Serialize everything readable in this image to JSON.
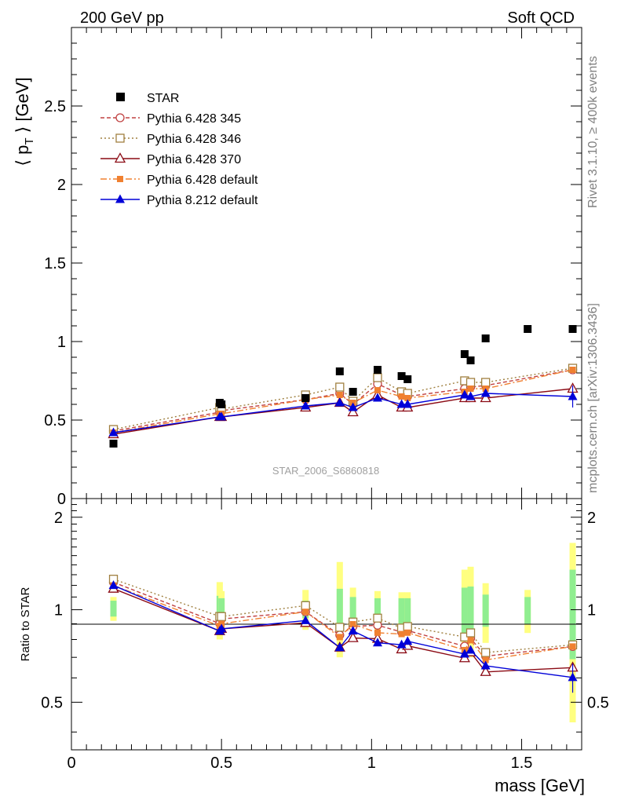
{
  "header": {
    "left_title": "200 GeV pp",
    "right_title": "Soft QCD"
  },
  "side_labels": {
    "rivet": "Rivet 3.1.10, ≥ 400k events",
    "mcplots": "mcplots.cern.ch [arXiv:1306.3436]"
  },
  "watermark": "STAR_2006_S6860818",
  "chart_data": {
    "type": "scatter",
    "title": "",
    "xlabel": "mass [GeV]",
    "ylabel": "⟨ p_T ⟩ [GeV]",
    "ratio_ylabel": "Ratio to STAR",
    "xlim": [
      0,
      1.7
    ],
    "ylim": [
      0,
      3.0
    ],
    "ratio_ylim": [
      0.35,
      2.3
    ],
    "x_ticks": [
      "0",
      "0.5",
      "1",
      "1.5"
    ],
    "x_tick_values": [
      0,
      0.5,
      1,
      1.5
    ],
    "y_ticks": [
      "0",
      "0.5",
      "1",
      "1.5",
      "2",
      "2.5"
    ],
    "y_tick_values": [
      0,
      0.5,
      1,
      1.5,
      2,
      2.5
    ],
    "ratio_ticks": [
      "0.5",
      "1",
      "2"
    ],
    "ratio_tick_values": [
      0.5,
      1,
      2
    ],
    "data": {
      "name": "STAR",
      "x": [
        0.14,
        0.494,
        0.5,
        0.78,
        0.894,
        0.938,
        1.02,
        1.1,
        1.12,
        1.31,
        1.33,
        1.38,
        1.52,
        1.67
      ],
      "y": [
        0.35,
        0.61,
        0.6,
        0.64,
        0.81,
        0.68,
        0.82,
        0.78,
        0.76,
        0.92,
        0.88,
        1.02,
        1.08,
        1.08
      ],
      "ratio_band_inner": [
        [
          0.95,
          1.07
        ],
        [
          0.89,
          1.11
        ],
        [
          0.92,
          1.09
        ],
        [
          0.94,
          1.07
        ],
        [
          0.85,
          1.17
        ],
        [
          0.9,
          1.1
        ],
        [
          0.92,
          1.09
        ],
        [
          0.9,
          1.09
        ],
        [
          0.9,
          1.09
        ],
        [
          0.83,
          1.18
        ],
        [
          0.82,
          1.19
        ],
        [
          0.88,
          1.12
        ],
        [
          0.9,
          1.1
        ],
        [
          0.69,
          1.35
        ]
      ],
      "ratio_band_outer": [
        [
          0.92,
          1.1
        ],
        [
          0.8,
          1.23
        ],
        [
          0.86,
          1.15
        ],
        [
          0.86,
          1.16
        ],
        [
          0.7,
          1.43
        ],
        [
          0.83,
          1.18
        ],
        [
          0.86,
          1.15
        ],
        [
          0.85,
          1.14
        ],
        [
          0.85,
          1.14
        ],
        [
          0.72,
          1.35
        ],
        [
          0.7,
          1.38
        ],
        [
          0.78,
          1.22
        ],
        [
          0.84,
          1.16
        ],
        [
          0.43,
          1.65
        ]
      ]
    },
    "series": [
      {
        "name": "Pythia 6.428 345",
        "color": "#c04040",
        "dash": "5,3",
        "marker": "circle-open",
        "x": [
          0.14,
          0.494,
          0.5,
          0.78,
          0.894,
          0.938,
          1.02,
          1.1,
          1.12,
          1.31,
          1.33,
          1.38,
          1.67
        ],
        "y": [
          0.43,
          0.55,
          0.56,
          0.63,
          0.67,
          0.6,
          0.73,
          0.66,
          0.65,
          0.7,
          0.71,
          0.72,
          0.82
        ]
      },
      {
        "name": "Pythia 6.428 346",
        "color": "#a08040",
        "dash": "2,3",
        "marker": "square-open",
        "x": [
          0.14,
          0.494,
          0.5,
          0.78,
          0.894,
          0.938,
          1.02,
          1.1,
          1.12,
          1.31,
          1.33,
          1.38,
          1.67
        ],
        "y": [
          0.44,
          0.58,
          0.57,
          0.66,
          0.71,
          0.62,
          0.77,
          0.68,
          0.67,
          0.75,
          0.74,
          0.74,
          0.83
        ]
      },
      {
        "name": "Pythia 6.428 370",
        "color": "#8b0a14",
        "dash": "",
        "marker": "triangle-open",
        "x": [
          0.14,
          0.494,
          0.5,
          0.78,
          0.894,
          0.938,
          1.02,
          1.1,
          1.12,
          1.31,
          1.33,
          1.38,
          1.67
        ],
        "y": [
          0.41,
          0.52,
          0.52,
          0.58,
          0.61,
          0.55,
          0.66,
          0.58,
          0.58,
          0.64,
          0.64,
          0.64,
          0.7
        ]
      },
      {
        "name": "Pythia 6.428 default",
        "color": "#f08030",
        "dash": "8,3,2,3",
        "marker": "square-filled",
        "x": [
          0.14,
          0.494,
          0.5,
          0.78,
          0.894,
          0.938,
          1.02,
          1.1,
          1.12,
          1.31,
          1.33,
          1.38,
          1.67
        ],
        "y": [
          0.42,
          0.54,
          0.54,
          0.63,
          0.66,
          0.61,
          0.69,
          0.65,
          0.64,
          0.68,
          0.7,
          0.7,
          0.82
        ]
      },
      {
        "name": "Pythia 8.212 default",
        "color": "#0000d8",
        "dash": "",
        "marker": "triangle-filled",
        "x": [
          0.14,
          0.494,
          0.5,
          0.78,
          0.894,
          0.938,
          1.02,
          1.1,
          1.12,
          1.31,
          1.33,
          1.38,
          1.67
        ],
        "y": [
          0.42,
          0.52,
          0.52,
          0.59,
          0.61,
          0.58,
          0.64,
          0.6,
          0.6,
          0.66,
          0.65,
          0.67,
          0.65
        ],
        "err": [
          0,
          0,
          0,
          0,
          0,
          0,
          0,
          0,
          0,
          0,
          0,
          0,
          0.07
        ]
      }
    ]
  }
}
